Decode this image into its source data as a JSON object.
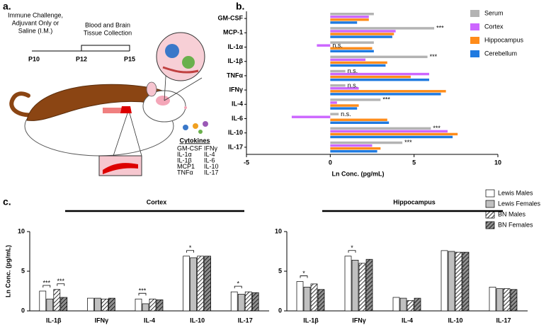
{
  "panels": [
    "a.",
    "b.",
    "c."
  ],
  "diagram": {
    "events": [
      {
        "lines": [
          "Immune Challenge,",
          "Adjuvant Only or",
          "Saline (I.M.)"
        ]
      },
      {
        "lines": [
          "Blood and Brain",
          "Tissue Collection"
        ]
      }
    ],
    "timepoints": [
      "P10",
      "P12",
      "P15"
    ],
    "cytokines": {
      "title": "Cytokines",
      "left": [
        "GM-CSF",
        "IL-1α",
        "IL-1β",
        "MCP1",
        "TNFα"
      ],
      "right": [
        "IFNγ",
        "IL-4",
        "IL-6",
        "IL-10",
        "IL-17"
      ]
    }
  },
  "chart_data": [
    {
      "type": "barh",
      "xlabel": "Ln Conc. (pg/mL)",
      "categories": [
        "GM-CSF",
        "MCP-1",
        "IL-1α",
        "IL-1β",
        "TNFα",
        "IFNγ",
        "IL-4",
        "IL-6",
        "IL-10",
        "IL-17"
      ],
      "series": [
        {
          "name": "Serum",
          "color": "#b3b3b3",
          "values": [
            2.6,
            6.2,
            2.6,
            5.8,
            0.9,
            0.9,
            3.0,
            0.5,
            6.0,
            4.3
          ]
        },
        {
          "name": "Cortex",
          "color": "#cc66ff",
          "values": [
            2.3,
            3.9,
            -0.8,
            2.1,
            5.9,
            1.7,
            0.4,
            -2.3,
            7.0,
            2.5
          ]
        },
        {
          "name": "Hippocampus",
          "color": "#ff8c1a",
          "values": [
            2.3,
            3.8,
            2.5,
            3.4,
            4.8,
            6.9,
            1.7,
            3.4,
            7.6,
            3.0
          ]
        },
        {
          "name": "Cerebellum",
          "color": "#1f7ae0",
          "values": [
            1.6,
            3.7,
            2.6,
            3.3,
            5.9,
            6.6,
            1.6,
            3.5,
            7.3,
            2.8
          ]
        }
      ],
      "annotations": [
        {
          "category": "MCP-1",
          "series": "Serum",
          "text": "***"
        },
        {
          "category": "IL-1α",
          "series": "Cortex",
          "text": "n.s."
        },
        {
          "category": "IL-1β",
          "series": "Serum",
          "text": "***"
        },
        {
          "category": "TNFα",
          "series": "Serum",
          "text": "n.s."
        },
        {
          "category": "IFNγ",
          "series": "Serum",
          "text": "n.s."
        },
        {
          "category": "IL-4",
          "series": "Serum",
          "text": "***"
        },
        {
          "category": "IL-6",
          "series": "Serum",
          "text": "n.s."
        },
        {
          "category": "IL-10",
          "series": "Serum",
          "text": "***"
        },
        {
          "category": "IL-17",
          "series": "Serum",
          "text": "***"
        }
      ],
      "xlim": [
        -5,
        10
      ],
      "xticks": [
        -5,
        0,
        5,
        10
      ],
      "legend": "right"
    },
    {
      "type": "bar",
      "title": "Cortex",
      "ylabel": "Ln Conc. (pg/mL)",
      "categories": [
        "IL-1β",
        "IFNγ",
        "IL-4",
        "IL-10",
        "IL-17"
      ],
      "series": [
        {
          "name": "Lewis Males",
          "color": "#ffffff",
          "hatch": false,
          "values": [
            2.5,
            1.6,
            1.5,
            6.9,
            2.4
          ]
        },
        {
          "name": "Lewis Females",
          "color": "#c0c0c0",
          "hatch": false,
          "values": [
            1.5,
            1.6,
            0.9,
            6.7,
            2.1
          ]
        },
        {
          "name": "BN Males",
          "color": "#ffffff",
          "hatch": true,
          "values": [
            2.7,
            1.5,
            1.5,
            6.9,
            2.4
          ]
        },
        {
          "name": "BN Females",
          "color": "#909090",
          "hatch": true,
          "values": [
            1.7,
            1.6,
            1.4,
            6.9,
            2.3
          ]
        }
      ],
      "brackets": [
        {
          "category": "IL-1β",
          "text": "***"
        },
        {
          "category": "IL-1β",
          "text": "***"
        },
        {
          "category": "IL-4",
          "text": "***"
        },
        {
          "category": "IL-10",
          "text": "*"
        },
        {
          "category": "IL-17",
          "text": "*"
        }
      ],
      "ylim": [
        0,
        10
      ],
      "yticks": [
        0,
        5,
        10
      ],
      "legend": "upper right"
    },
    {
      "type": "bar",
      "title": "Hippocampus",
      "categories": [
        "IL-1β",
        "IFNγ",
        "IL-4",
        "IL-10",
        "IL-17"
      ],
      "series": [
        {
          "color": "#ffffff",
          "hatch": false,
          "values": [
            3.7,
            6.9,
            1.7,
            7.6,
            3.0
          ]
        },
        {
          "color": "#c0c0c0",
          "hatch": false,
          "values": [
            3.0,
            6.4,
            1.6,
            7.5,
            2.8
          ]
        },
        {
          "color": "#ffffff",
          "hatch": true,
          "values": [
            3.4,
            6.0,
            1.3,
            7.4,
            2.8
          ]
        },
        {
          "color": "#909090",
          "hatch": true,
          "values": [
            2.7,
            6.5,
            1.6,
            7.4,
            2.7
          ]
        }
      ],
      "brackets": [
        {
          "category": "IL-1β",
          "text": "*"
        },
        {
          "category": "IFNγ",
          "text": "*"
        }
      ],
      "ylim": [
        0,
        10
      ],
      "yticks": [
        0,
        5,
        10
      ]
    }
  ]
}
